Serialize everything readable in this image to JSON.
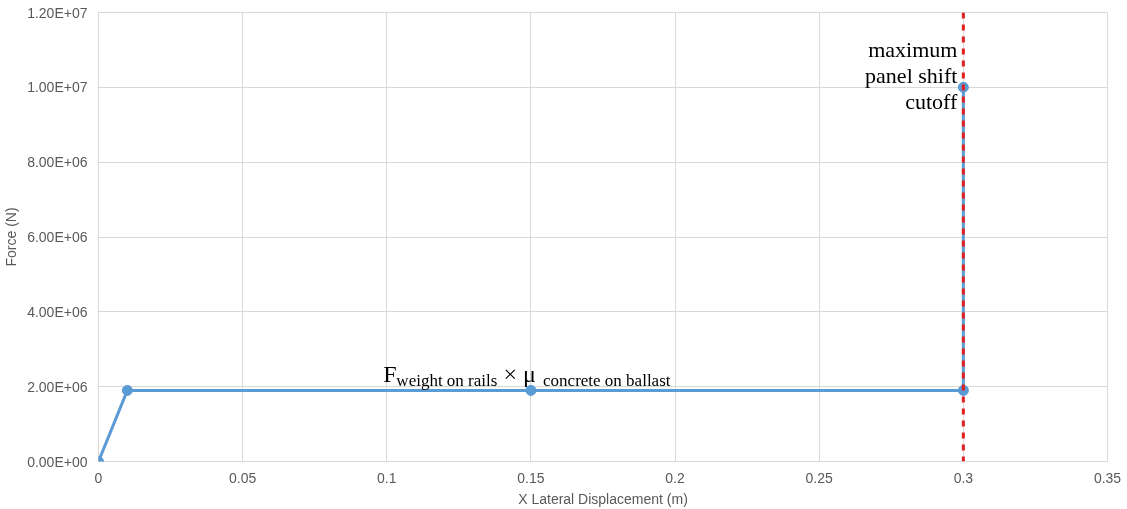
{
  "chart_data": {
    "type": "line",
    "xlabel": "X Lateral Displacement (m)",
    "ylabel": "Force (N)",
    "x": [
      0,
      0.01,
      0.15,
      0.3,
      0.3
    ],
    "series": [
      {
        "color": "#5b9bd5",
        "values": [
          0,
          1900000,
          1900000,
          1900000,
          10000000
        ]
      }
    ],
    "xlim": [
      0,
      0.35
    ],
    "xticks": [
      0,
      0.05,
      0.1,
      0.15,
      0.2,
      0.25,
      0.3,
      0.35
    ],
    "ylim": [
      0,
      12000000
    ],
    "yticks": [
      {
        "value": 0,
        "label": "0.00E+00"
      },
      {
        "value": 2000000,
        "label": "2.00E+06"
      },
      {
        "value": 4000000,
        "label": "4.00E+06"
      },
      {
        "value": 6000000,
        "label": "6.00E+06"
      },
      {
        "value": 8000000,
        "label": "8.00E+06"
      },
      {
        "value": 10000000,
        "label": "1.00E+07"
      },
      {
        "value": 12000000,
        "label": "1.20E+07"
      }
    ],
    "ref_lines": [
      {
        "axis": "x",
        "value": 0.3,
        "label": "maximum\npanel shift\ncutoff",
        "color": "#e02020",
        "line_style": "dashed"
      }
    ],
    "annotations": [
      {
        "text": "F$_{weight on rails}$× μ$_{concrete on ballast}$",
        "x": 0.15,
        "y": 1900000
      }
    ],
    "grid": true,
    "marker": "circle",
    "line_style": "solid"
  }
}
